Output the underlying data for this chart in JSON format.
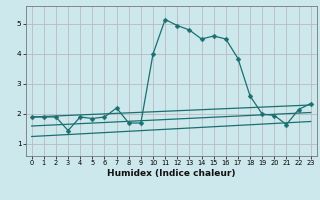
{
  "title": "",
  "xlabel": "Humidex (Indice chaleur)",
  "background_color": "#cce8ec",
  "grid_major_color": "#aaccd4",
  "grid_minor_color": "#e8b8b8",
  "line_color": "#1a7070",
  "xlim": [
    -0.5,
    23.5
  ],
  "ylim": [
    0.6,
    5.6
  ],
  "xticks": [
    0,
    1,
    2,
    3,
    4,
    5,
    6,
    7,
    8,
    9,
    10,
    11,
    12,
    13,
    14,
    15,
    16,
    17,
    18,
    19,
    20,
    21,
    22,
    23
  ],
  "yticks": [
    1,
    2,
    3,
    4,
    5
  ],
  "line1_x": [
    0,
    1,
    2,
    3,
    4,
    5,
    6,
    7,
    8,
    9,
    10,
    11,
    12,
    13,
    14,
    15,
    16,
    17,
    18,
    19,
    20,
    21,
    22,
    23
  ],
  "line1_y": [
    1.9,
    1.9,
    1.9,
    1.45,
    1.9,
    1.85,
    1.9,
    2.2,
    1.7,
    1.7,
    4.0,
    5.15,
    4.95,
    4.8,
    4.5,
    4.6,
    4.5,
    3.85,
    2.6,
    2.0,
    1.95,
    1.65,
    2.15,
    2.35
  ],
  "line2_x": [
    0,
    23
  ],
  "line2_y": [
    1.9,
    2.3
  ],
  "line3_x": [
    0,
    23
  ],
  "line3_y": [
    1.6,
    2.05
  ],
  "line4_x": [
    0,
    23
  ],
  "line4_y": [
    1.25,
    1.75
  ],
  "markersize": 2.5,
  "linewidth": 0.9,
  "xlabel_fontsize": 6.5,
  "tick_fontsize": 4.8
}
